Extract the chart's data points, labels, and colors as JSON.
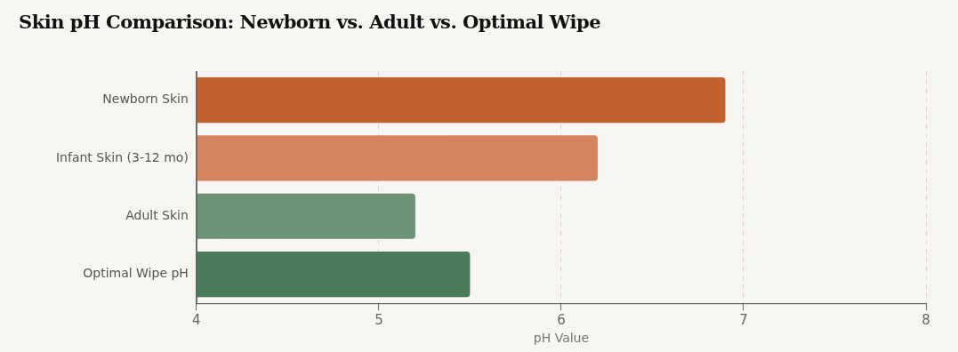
{
  "chart_data": {
    "type": "bar",
    "title": "Skin pH Comparison: Newborn vs. Adult vs. Optimal Wipe",
    "orientation": "horizontal",
    "categories": [
      "Newborn Skin",
      "Infant Skin (3-12 mo)",
      "Adult Skin",
      "Optimal Wipe pH"
    ],
    "values": [
      6.9,
      6.2,
      5.2,
      5.5
    ],
    "colors": [
      "#c4622d",
      "#d4845e",
      "#6b9474",
      "#4a7c59"
    ],
    "xlabel": "pH Value",
    "xlim": [
      4,
      8
    ],
    "xticks": [
      4,
      5,
      6,
      7,
      8
    ],
    "grid": "x"
  }
}
